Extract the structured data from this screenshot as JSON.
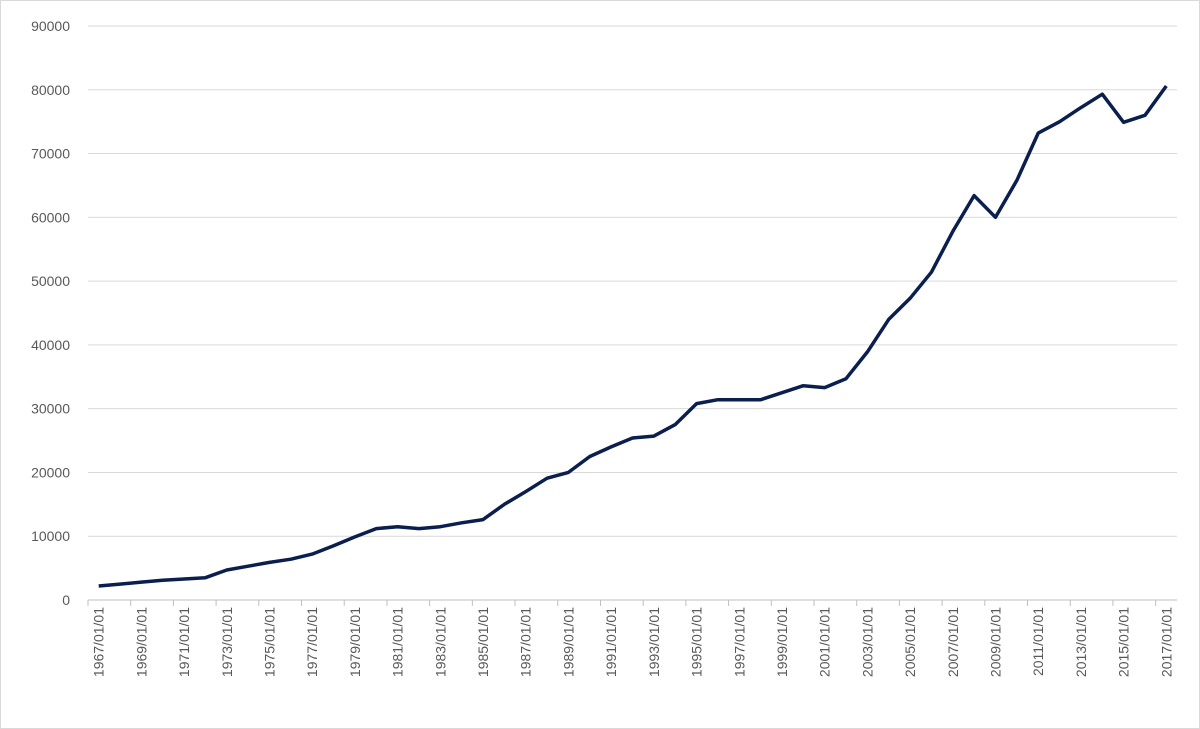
{
  "chart_data": {
    "type": "line",
    "categories": [
      "1967/01/01",
      null,
      "1969/01/01",
      null,
      "1971/01/01",
      null,
      "1973/01/01",
      null,
      "1975/01/01",
      null,
      "1977/01/01",
      null,
      "1979/01/01",
      null,
      "1981/01/01",
      null,
      "1983/01/01",
      null,
      "1985/01/01",
      null,
      "1987/01/01",
      null,
      "1989/01/01",
      null,
      "1991/01/01",
      null,
      "1993/01/01",
      null,
      "1995/01/01",
      null,
      "1997/01/01",
      null,
      "1999/01/01",
      null,
      "2001/01/01",
      null,
      "2003/01/01",
      null,
      "2005/01/01",
      null,
      "2007/01/01",
      null,
      "2009/01/01",
      null,
      "2011/01/01",
      null,
      "2013/01/01",
      null,
      "2015/01/01",
      null,
      "2017/01/01"
    ],
    "series": [
      {
        "color": "#0b1f4f",
        "values": [
          2200,
          2500,
          2800,
          3100,
          3300,
          3500,
          4700,
          5300,
          5900,
          6400,
          7200,
          8500,
          9900,
          11200,
          11500,
          11200,
          11500,
          12100,
          12600,
          15000,
          17000,
          19100,
          20000,
          22500,
          24000,
          25400,
          25700,
          27500,
          30800,
          31400,
          31400,
          31400,
          32500,
          33600,
          33300,
          34700,
          38900,
          44000,
          47300,
          51400,
          57800,
          63400,
          60000,
          65800,
          73200,
          75000,
          77200,
          79300,
          74900,
          76000,
          80600
        ]
      }
    ],
    "ylim": [
      0,
      90000
    ],
    "yticks": [
      0,
      10000,
      20000,
      30000,
      40000,
      50000,
      60000,
      70000,
      80000,
      90000
    ],
    "grid": true
  }
}
